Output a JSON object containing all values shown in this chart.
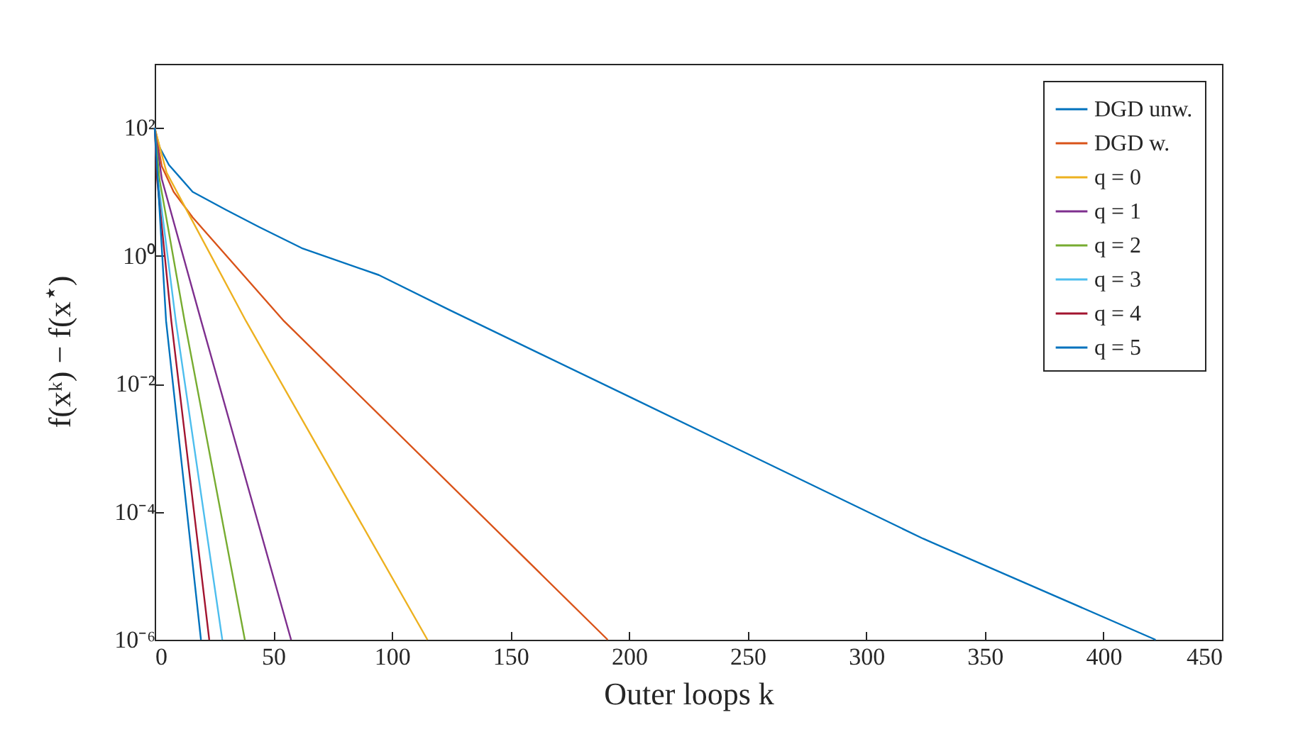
{
  "chart_data": {
    "type": "line",
    "xlabel": "Outer loops k",
    "ylabel": "f(xᵏ) − f(x$^{⋆}$)",
    "log": "y",
    "legend": "top right",
    "line_style": "solid",
    "xlim": [
      0,
      450
    ],
    "xticks": [
      0,
      50,
      100,
      150,
      200,
      250,
      300,
      350,
      400,
      450
    ],
    "ylim": [
      1e-06,
      1000
    ],
    "yticks": [
      {
        "value": 1e-06,
        "label": "10⁻⁶"
      },
      {
        "value": 0.0001,
        "label": "10⁻⁴"
      },
      {
        "value": 0.01,
        "label": "10⁻²"
      },
      {
        "value": 1,
        "label": "10⁰"
      },
      {
        "value": 100,
        "label": "10²"
      }
    ],
    "series": [
      {
        "name": "DGD unw.",
        "color": "#0072bd",
        "x": [
          0,
          2,
          6,
          16,
          30,
          44,
          62,
          94.5,
          124.5,
          200,
          324,
          422
        ],
        "values": [
          100,
          50.1,
          26.3,
          10,
          5.25,
          2.82,
          1.32,
          0.501,
          0.141,
          0.00631,
          3.8e-05,
          1e-06
        ]
      },
      {
        "name": "DGD w.",
        "color": "#d95319",
        "x": [
          0,
          3,
          8,
          16,
          54.5,
          191
        ],
        "values": [
          100,
          25.1,
          10,
          3.98,
          0.0955,
          1e-06
        ]
      },
      {
        "name": "q = 0",
        "color": "#edb120",
        "x": [
          0,
          5,
          38.5,
          115
        ],
        "values": [
          100,
          20,
          0.0955,
          1e-06
        ]
      },
      {
        "name": "q = 1",
        "color": "#7e2f8e",
        "x": [
          0,
          3,
          19.6,
          57.5
        ],
        "values": [
          100,
          15.8,
          0.0955,
          1e-06
        ]
      },
      {
        "name": "q = 2",
        "color": "#77ac30",
        "x": [
          0,
          2,
          12.6,
          38
        ],
        "values": [
          100,
          15.8,
          0.0955,
          1e-06
        ]
      },
      {
        "name": "q = 3",
        "color": "#4dbeee",
        "x": [
          0,
          1,
          8.9,
          28.5
        ],
        "values": [
          100,
          20,
          0.0955,
          1e-06
        ]
      },
      {
        "name": "q = 4",
        "color": "#a2142f",
        "x": [
          0,
          1,
          7,
          23
        ],
        "values": [
          100,
          15.8,
          0.0955,
          1e-06
        ]
      },
      {
        "name": "q = 5",
        "color": "#0072bd",
        "x": [
          0,
          4.8,
          19.5
        ],
        "values": [
          100,
          0.0955,
          1e-06
        ]
      }
    ]
  }
}
